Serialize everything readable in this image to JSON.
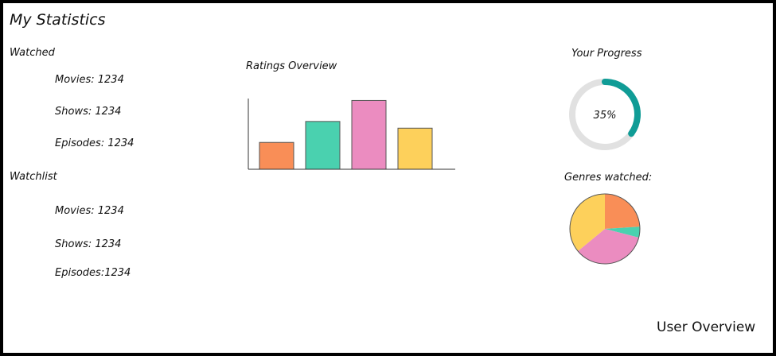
{
  "page": {
    "title": "My Statistics",
    "footer": "User Overview"
  },
  "watched": {
    "heading": "Watched",
    "items": [
      "Movies: 1234",
      "Shows: 1234",
      "Episodes: 1234"
    ]
  },
  "watchlist": {
    "heading": "Watchlist",
    "items": [
      "Movies: 1234",
      "Shows: 1234",
      "Episodes:1234"
    ]
  },
  "chart_data": [
    {
      "type": "bar",
      "title": "Ratings Overview",
      "categories": [
        "",
        "",
        "",
        ""
      ],
      "values": [
        32,
        57,
        82,
        49
      ],
      "ylim": [
        0,
        90
      ],
      "colors": [
        "#F98E57",
        "#4AD1AF",
        "#EB8CC0",
        "#FDD05B"
      ]
    },
    {
      "type": "pie",
      "title": "Genres watched:",
      "values": [
        24,
        5,
        35,
        36
      ],
      "colors": [
        "#F98E57",
        "#4AD1AF",
        "#EB8CC0",
        "#FDD05B"
      ]
    }
  ],
  "progress": {
    "title": "Your Progress",
    "label": "35%",
    "value": 0.35,
    "track_color": "#E1E1E1",
    "fill_color": "#109C96"
  }
}
